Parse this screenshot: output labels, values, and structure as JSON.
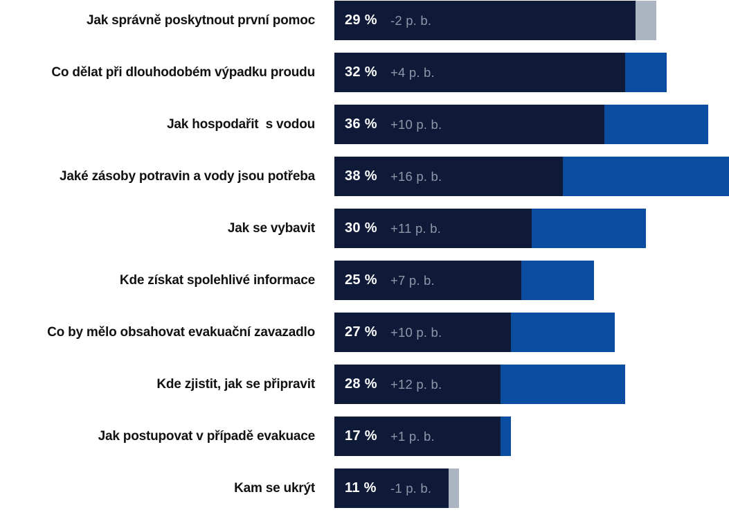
{
  "chart_data": {
    "type": "bar",
    "orientation": "horizontal",
    "title": "",
    "xlabel": "",
    "ylabel": "",
    "value_unit": "%",
    "change_unit": "p. b.",
    "grid": false,
    "legend": false,
    "axis_range_points": [
      0,
      38
    ],
    "rows": [
      {
        "label": "Jak správně poskytnout první pomoc",
        "value": 29,
        "change": -2,
        "value_label": "29 %",
        "change_label": "-2 p. b."
      },
      {
        "label": "Co dělat při dlouhodobém výpadku proudu",
        "value": 32,
        "change": 4,
        "value_label": "32 %",
        "change_label": "+4 p. b."
      },
      {
        "label": "Jak hospodařit  s vodou",
        "value": 36,
        "change": 10,
        "value_label": "36 %",
        "change_label": "+10 p. b."
      },
      {
        "label": "Jaké zásoby potravin a vody jsou potřeba",
        "value": 38,
        "change": 16,
        "value_label": "38 %",
        "change_label": "+16 p. b."
      },
      {
        "label": "Jak se vybavit",
        "value": 30,
        "change": 11,
        "value_label": "30 %",
        "change_label": "+11 p. b."
      },
      {
        "label": "Kde získat spolehlivé informace",
        "value": 25,
        "change": 7,
        "value_label": "25 %",
        "change_label": "+7 p. b."
      },
      {
        "label": "Co by mělo obsahovat evakuační zavazadlo",
        "value": 27,
        "change": 10,
        "value_label": "27 %",
        "change_label": "+10 p. b."
      },
      {
        "label": "Kde zjistit, jak se připravit",
        "value": 28,
        "change": 12,
        "value_label": "28 %",
        "change_label": "+12 p. b."
      },
      {
        "label": "Jak postupovat v případě evakuace",
        "value": 17,
        "change": 1,
        "value_label": "17 %",
        "change_label": "+1 p. b."
      },
      {
        "label": "Kam se ukrýt",
        "value": 11,
        "change": -1,
        "value_label": "11 %",
        "change_label": "-1 p. b."
      }
    ],
    "colors": {
      "bar_main": "#0e1a38",
      "bar_increase": "#0a4da1",
      "bar_decrease": "#abb5c1",
      "value_text": "#ffffff",
      "change_text": "#8e97a9",
      "label_text": "#111111"
    }
  }
}
